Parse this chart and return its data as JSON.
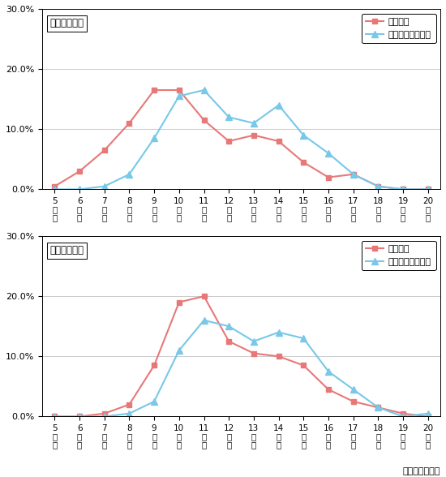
{
  "top_chart": {
    "title": "自宅出発時刻",
    "x_labels": [
      "5\n時\n台",
      "6\n時\n台",
      "7\n時\n台",
      "8\n時\n台",
      "9\n時\n台",
      "10\n時\n台",
      "11\n時\n台",
      "12\n時\n台",
      "13\n時\n台",
      "14\n時\n台",
      "15\n時\n台",
      "16\n時\n台",
      "17\n時\n台",
      "18\n時\n台",
      "19\n時\n台",
      "20\n時\n台"
    ],
    "kanko": [
      0.5,
      3.0,
      6.5,
      11.0,
      16.5,
      16.5,
      11.5,
      8.0,
      9.0,
      8.0,
      4.5,
      2.0,
      2.5,
      0.5,
      0.0,
      0.0
    ],
    "kaimono": [
      0.0,
      0.0,
      0.5,
      2.5,
      8.5,
      15.5,
      16.5,
      12.0,
      11.0,
      14.0,
      9.0,
      6.0,
      2.5,
      0.5,
      0.0,
      0.0
    ]
  },
  "bottom_chart": {
    "title": "回遊開始時刻",
    "x_labels": [
      "5\n時\n台",
      "6\n時\n台",
      "7\n時\n台",
      "8\n時\n台",
      "9\n時\n台",
      "10\n時\n台",
      "11\n時\n台",
      "12\n時\n台",
      "13\n時\n台",
      "14\n時\n台",
      "15\n時\n台",
      "16\n時\n台",
      "17\n時\n台",
      "18\n時\n台",
      "19\n時\n台",
      "20\n時\n台"
    ],
    "kanko": [
      0.0,
      0.0,
      0.5,
      2.0,
      8.5,
      19.0,
      20.0,
      12.5,
      10.5,
      10.0,
      8.5,
      4.5,
      2.5,
      1.5,
      0.5,
      0.0
    ],
    "kaimono": [
      0.0,
      0.0,
      0.0,
      0.5,
      2.5,
      11.0,
      16.0,
      15.0,
      12.5,
      14.0,
      13.0,
      7.5,
      4.5,
      1.5,
      0.0,
      0.5
    ]
  },
  "legend": {
    "kanko_label": "観光目的",
    "kaimono_label": "買い物・食事目的"
  },
  "kanko_color": "#E87878",
  "kaimono_color": "#78C8E8",
  "footnote": "資料：回遊調査",
  "ylim": [
    0,
    30
  ],
  "yticks": [
    0,
    10,
    20,
    30
  ],
  "ytick_labels": [
    "0.0%",
    "10.0%",
    "20.0%",
    "30.0%"
  ]
}
